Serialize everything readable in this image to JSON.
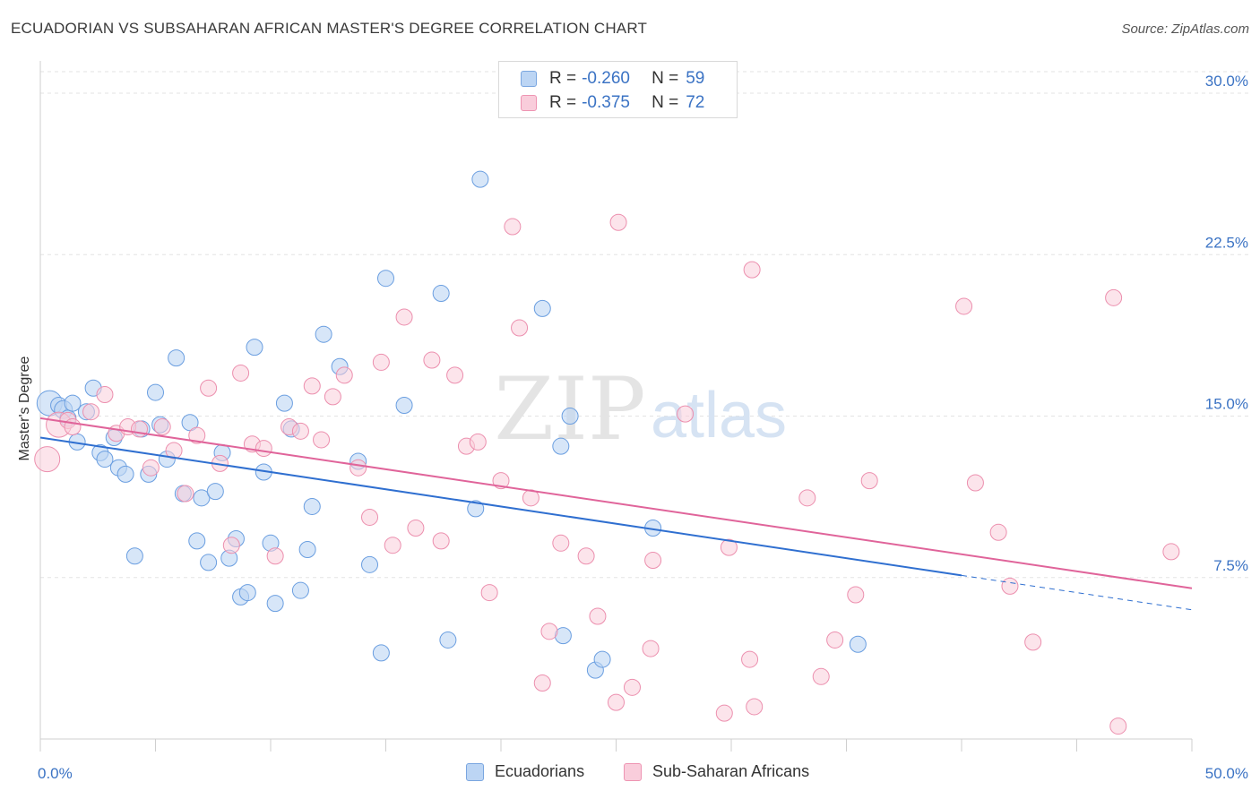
{
  "header": {
    "title": "ECUADORIAN VS SUBSAHARAN AFRICAN MASTER'S DEGREE CORRELATION CHART",
    "source": "Source: ZipAtlas.com"
  },
  "watermark": {
    "zip": "ZIP",
    "atlas": "atlas"
  },
  "legend_top": {
    "rows": [
      {
        "r_label": "R =",
        "r_value": "-0.260",
        "n_label": "N =",
        "n_value": "59",
        "color": "#a9c8f0",
        "border": "#7aa6e0"
      },
      {
        "r_label": "R =",
        "r_value": "-0.375",
        "n_label": "N =",
        "n_value": "72",
        "color": "#f6bfd0",
        "border": "#ee94b2"
      }
    ]
  },
  "legend_bottom": {
    "items": [
      {
        "label": "Ecuadorians",
        "color": "#a9c8f0",
        "border": "#7aa6e0"
      },
      {
        "label": "Sub-Saharan Africans",
        "color": "#f6bfd0",
        "border": "#ee94b2"
      }
    ]
  },
  "chart_data": {
    "type": "scatter",
    "title": "ECUADORIAN VS SUBSAHARAN AFRICAN MASTER'S DEGREE CORRELATION CHART",
    "xlabel": "",
    "ylabel": "Master's Degree",
    "xlim": [
      0,
      50
    ],
    "ylim": [
      0,
      31
    ],
    "x_tick_labels": [
      "0.0%",
      "50.0%"
    ],
    "y_ticks": [
      7.5,
      15.0,
      22.5,
      30.0
    ],
    "y_tick_labels": [
      "7.5%",
      "15.0%",
      "22.5%",
      "30.0%"
    ],
    "grid": true,
    "legend_position": "top-center",
    "colors": {
      "ecuadorians": "#6a9ee0",
      "ecuadorians_fill": "#bcd5f4",
      "ecuadorians_line": "#2f6fd0",
      "subsaharan": "#ec8fae",
      "subsaharan_fill": "#f9cddb",
      "subsaharan_line": "#e0649a",
      "tick_label": "#3b73c4"
    },
    "series": [
      {
        "name": "Ecuadorians",
        "trend": {
          "x0": 0,
          "y0": 14.0,
          "x1": 40,
          "y1": 7.6,
          "dash_to_x": 50,
          "dash_to_y": 6.0
        },
        "points": [
          [
            0.4,
            15.6,
            14
          ],
          [
            0.8,
            15.5,
            9
          ],
          [
            1.0,
            15.3,
            10
          ],
          [
            1.2,
            14.9,
            9
          ],
          [
            1.4,
            15.6,
            9
          ],
          [
            1.6,
            13.8,
            9
          ],
          [
            2.0,
            15.2,
            9
          ],
          [
            2.3,
            16.3,
            9
          ],
          [
            2.6,
            13.3,
            9
          ],
          [
            2.8,
            13.0,
            9
          ],
          [
            3.2,
            14.0,
            9
          ],
          [
            3.4,
            12.6,
            9
          ],
          [
            3.7,
            12.3,
            9
          ],
          [
            4.1,
            8.5,
            9
          ],
          [
            4.4,
            14.4,
            9
          ],
          [
            4.7,
            12.3,
            9
          ],
          [
            5.0,
            16.1,
            9
          ],
          [
            5.2,
            14.6,
            9
          ],
          [
            5.5,
            13.0,
            9
          ],
          [
            5.9,
            17.7,
            9
          ],
          [
            6.2,
            11.4,
            9
          ],
          [
            6.5,
            14.7,
            9
          ],
          [
            6.8,
            9.2,
            9
          ],
          [
            7.0,
            11.2,
            9
          ],
          [
            7.3,
            8.2,
            9
          ],
          [
            7.6,
            11.5,
            9
          ],
          [
            7.9,
            13.3,
            9
          ],
          [
            8.2,
            8.4,
            9
          ],
          [
            8.5,
            9.3,
            9
          ],
          [
            8.7,
            6.6,
            9
          ],
          [
            9.0,
            6.8,
            9
          ],
          [
            9.3,
            18.2,
            9
          ],
          [
            9.7,
            12.4,
            9
          ],
          [
            10.0,
            9.1,
            9
          ],
          [
            10.2,
            6.3,
            9
          ],
          [
            10.6,
            15.6,
            9
          ],
          [
            10.9,
            14.4,
            9
          ],
          [
            11.3,
            6.9,
            9
          ],
          [
            11.6,
            8.8,
            9
          ],
          [
            11.8,
            10.8,
            9
          ],
          [
            12.3,
            18.8,
            9
          ],
          [
            13.0,
            17.3,
            9
          ],
          [
            13.8,
            12.9,
            9
          ],
          [
            14.3,
            8.1,
            9
          ],
          [
            14.8,
            4.0,
            9
          ],
          [
            15.0,
            21.4,
            9
          ],
          [
            15.8,
            15.5,
            9
          ],
          [
            17.4,
            20.7,
            9
          ],
          [
            17.7,
            4.6,
            9
          ],
          [
            18.9,
            10.7,
            9
          ],
          [
            19.1,
            26.0,
            9
          ],
          [
            21.8,
            20.0,
            9
          ],
          [
            22.6,
            13.6,
            9
          ],
          [
            22.7,
            4.8,
            9
          ],
          [
            23.0,
            15.0,
            9
          ],
          [
            24.1,
            3.2,
            9
          ],
          [
            24.4,
            3.7,
            9
          ],
          [
            26.6,
            9.8,
            9
          ],
          [
            35.5,
            4.4,
            9
          ]
        ]
      },
      {
        "name": "Sub-Saharan Africans",
        "trend": {
          "x0": 0,
          "y0": 14.9,
          "x1": 50,
          "y1": 7.0
        },
        "points": [
          [
            0.3,
            13.0,
            14
          ],
          [
            0.8,
            14.6,
            14
          ],
          [
            1.2,
            14.8,
            9
          ],
          [
            1.4,
            14.5,
            9
          ],
          [
            2.2,
            15.2,
            9
          ],
          [
            2.8,
            16.0,
            9
          ],
          [
            3.3,
            14.2,
            9
          ],
          [
            3.8,
            14.5,
            9
          ],
          [
            4.3,
            14.4,
            9
          ],
          [
            4.8,
            12.6,
            9
          ],
          [
            5.3,
            14.5,
            9
          ],
          [
            5.8,
            13.4,
            9
          ],
          [
            6.3,
            11.4,
            9
          ],
          [
            6.8,
            14.1,
            9
          ],
          [
            7.3,
            16.3,
            9
          ],
          [
            7.8,
            12.8,
            9
          ],
          [
            8.3,
            9.0,
            9
          ],
          [
            8.7,
            17.0,
            9
          ],
          [
            9.2,
            13.7,
            9
          ],
          [
            9.7,
            13.5,
            9
          ],
          [
            10.2,
            8.5,
            9
          ],
          [
            10.8,
            14.5,
            9
          ],
          [
            11.3,
            14.3,
            9
          ],
          [
            11.8,
            16.4,
            9
          ],
          [
            12.2,
            13.9,
            9
          ],
          [
            12.7,
            15.9,
            9
          ],
          [
            13.2,
            16.9,
            9
          ],
          [
            13.8,
            12.6,
            9
          ],
          [
            14.3,
            10.3,
            9
          ],
          [
            14.8,
            17.5,
            9
          ],
          [
            15.3,
            9.0,
            9
          ],
          [
            15.8,
            19.6,
            9
          ],
          [
            16.3,
            9.8,
            9
          ],
          [
            17.0,
            17.6,
            9
          ],
          [
            17.4,
            9.2,
            9
          ],
          [
            18.0,
            16.9,
            9
          ],
          [
            18.5,
            13.6,
            9
          ],
          [
            19.0,
            13.8,
            9
          ],
          [
            19.5,
            6.8,
            9
          ],
          [
            20.0,
            12.0,
            9
          ],
          [
            20.5,
            23.8,
            9
          ],
          [
            20.8,
            19.1,
            9
          ],
          [
            21.3,
            11.2,
            9
          ],
          [
            21.8,
            2.6,
            9
          ],
          [
            22.1,
            5.0,
            9
          ],
          [
            22.6,
            9.1,
            9
          ],
          [
            23.7,
            8.5,
            9
          ],
          [
            24.2,
            5.7,
            9
          ],
          [
            25.0,
            1.7,
            9
          ],
          [
            25.1,
            24.0,
            9
          ],
          [
            25.7,
            2.4,
            9
          ],
          [
            26.5,
            4.2,
            9
          ],
          [
            26.6,
            8.3,
            9
          ],
          [
            28.0,
            15.1,
            9
          ],
          [
            29.7,
            1.2,
            9
          ],
          [
            29.9,
            8.9,
            9
          ],
          [
            30.8,
            3.7,
            9
          ],
          [
            30.9,
            21.8,
            9
          ],
          [
            31.0,
            1.5,
            9
          ],
          [
            33.3,
            11.2,
            9
          ],
          [
            33.9,
            2.9,
            9
          ],
          [
            34.5,
            4.6,
            9
          ],
          [
            35.4,
            6.7,
            9
          ],
          [
            36.0,
            12.0,
            9
          ],
          [
            40.1,
            20.1,
            9
          ],
          [
            40.6,
            11.9,
            9
          ],
          [
            41.6,
            9.6,
            9
          ],
          [
            42.1,
            7.1,
            9
          ],
          [
            43.1,
            4.5,
            9
          ],
          [
            46.6,
            20.5,
            9
          ],
          [
            46.8,
            0.6,
            9
          ],
          [
            49.1,
            8.7,
            9
          ]
        ]
      }
    ]
  }
}
